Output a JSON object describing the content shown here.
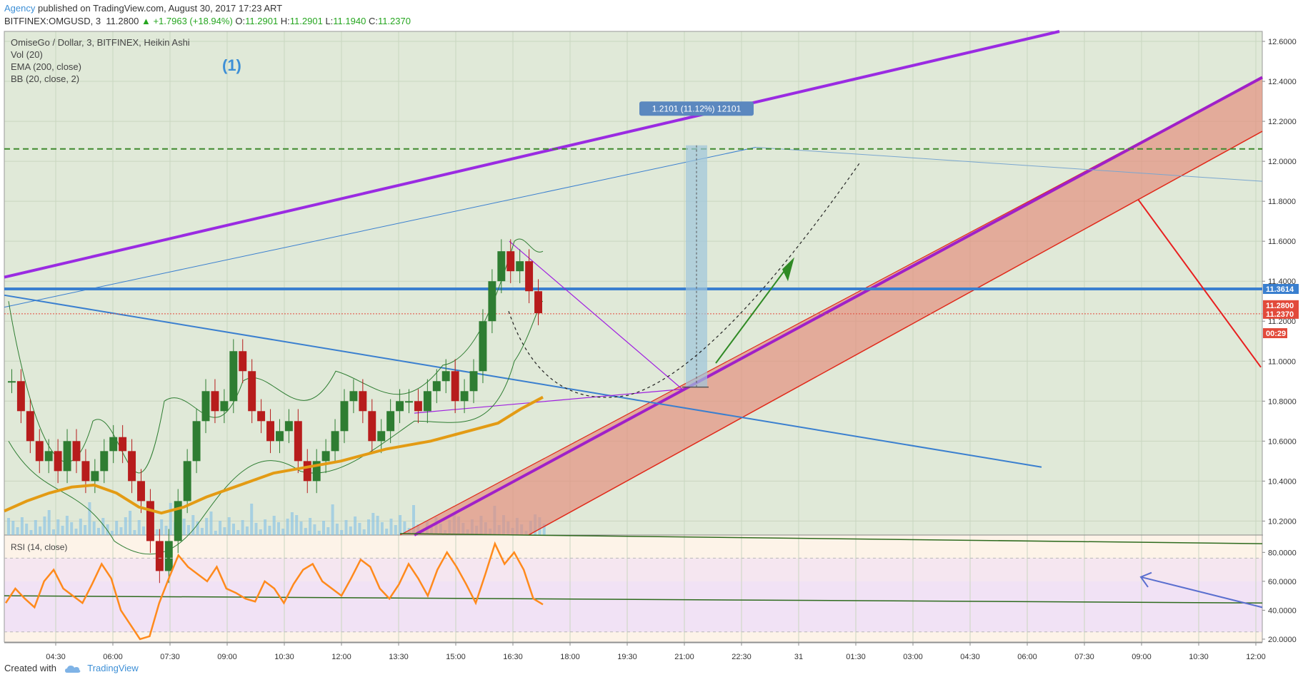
{
  "header": {
    "publisher": "Agency",
    "published_text": "published on TradingView.com, August 30, 2017 17:23 ART",
    "symbol": "BITFINEX:OMGUSD, 3",
    "last_price": "11.2800",
    "change": "+1.7963 (+18.94%)",
    "open_label": "O:",
    "open": "11.2901",
    "high_label": "H:",
    "high": "11.2901",
    "low_label": "L:",
    "low": "11.1940",
    "close_label": "C:",
    "close": "11.2370"
  },
  "legend": {
    "line1": "OmiseGo / Dollar, 3, BITFINEX, Heikin Ashi",
    "line2": "Vol (20)",
    "line3": "EMA (200, close)",
    "line4": "BB (20, close, 2)",
    "wave_label": "(1)"
  },
  "rsi": {
    "label": "RSI (14, close)"
  },
  "footer": {
    "created_with": "Created with",
    "brand": "TradingView"
  },
  "chart_data": {
    "type": "line",
    "title": "OmiseGo / Dollar, 3, BITFINEX, Heikin Ashi",
    "colors": {
      "price_axis_bg": "#e0e9d8",
      "rsi_bg": "#f5e6f0",
      "channel_purple": "#9a2be2",
      "trend_blue": "#3a7fcf",
      "ema": "#e39b14",
      "rsi_line": "#ff8a1c",
      "fill_red": "#e58a7a",
      "up_candle": "#2e7d32",
      "down_candle": "#b71c1c"
    },
    "price_axis": {
      "ticks": [
        "12.6000",
        "12.4000",
        "12.2000",
        "12.0000",
        "11.8000",
        "11.6000",
        "11.4000",
        "11.2000",
        "11.0000",
        "10.8000",
        "10.6000",
        "10.4000",
        "10.2000"
      ],
      "ylim": [
        10.13,
        12.65
      ],
      "labels": [
        {
          "text": "11.3614",
          "value": 11.3614,
          "color": "#3a7fcf"
        },
        {
          "text": "11.2800",
          "value": 11.28,
          "color": "#e24a3b"
        },
        {
          "text": "11.2370",
          "value": 11.237,
          "color": "#e24a3b"
        },
        {
          "text": "00:29",
          "value": 11.14,
          "color": "#e24a3b"
        }
      ]
    },
    "time_axis": {
      "ticks": [
        "04:30",
        "06:00",
        "07:30",
        "09:00",
        "10:30",
        "12:00",
        "13:30",
        "15:00",
        "16:30",
        "18:00",
        "19:30",
        "21:00",
        "22:30",
        "31",
        "01:30",
        "03:00",
        "04:30",
        "06:00",
        "07:30",
        "09:00",
        "10:30",
        "12:00"
      ]
    },
    "rsi_axis": {
      "ticks": [
        "80.0000",
        "60.0000",
        "40.0000",
        "20.0000"
      ],
      "ylim": [
        18,
        92
      ]
    },
    "measure_label": "1.2101 (11.12%) 12101",
    "series": [
      {
        "name": "OMGUSD",
        "close": [
          10.9,
          10.75,
          10.6,
          10.5,
          10.55,
          10.45,
          10.6,
          10.5,
          10.4,
          10.45,
          10.55,
          10.62,
          10.55,
          10.4,
          10.3,
          10.1,
          9.95,
          10.1,
          10.3,
          10.5,
          10.7,
          10.85,
          10.75,
          10.8,
          11.05,
          10.95,
          10.75,
          10.7,
          10.6,
          10.65,
          10.7,
          10.5,
          10.4,
          10.5,
          10.55,
          10.65,
          10.8,
          10.85,
          10.75,
          10.6,
          10.65,
          10.75,
          10.8,
          10.8,
          10.75,
          10.85,
          10.9,
          10.95,
          10.8,
          10.85,
          10.95,
          11.2,
          11.4,
          11.55,
          11.45,
          11.5,
          11.35,
          11.24
        ]
      },
      {
        "name": "EMA 200",
        "values": [
          10.25,
          10.3,
          10.34,
          10.37,
          10.38,
          10.34,
          10.27,
          10.24,
          10.27,
          10.32,
          10.36,
          10.4,
          10.44,
          10.46,
          10.48,
          10.5,
          10.53,
          10.56,
          10.58,
          10.6,
          10.63,
          10.66,
          10.69,
          10.76,
          10.82
        ]
      },
      {
        "name": "RSI",
        "values": [
          45,
          55,
          48,
          42,
          60,
          68,
          55,
          50,
          45,
          58,
          72,
          62,
          40,
          30,
          20,
          22,
          45,
          62,
          78,
          70,
          65,
          60,
          70,
          55,
          52,
          48,
          46,
          60,
          55,
          45,
          58,
          68,
          72,
          60,
          55,
          50,
          62,
          75,
          70,
          55,
          48,
          58,
          72,
          62,
          50,
          68,
          80,
          70,
          58,
          45,
          65,
          86,
          72,
          80,
          68,
          48,
          44
        ]
      }
    ]
  }
}
